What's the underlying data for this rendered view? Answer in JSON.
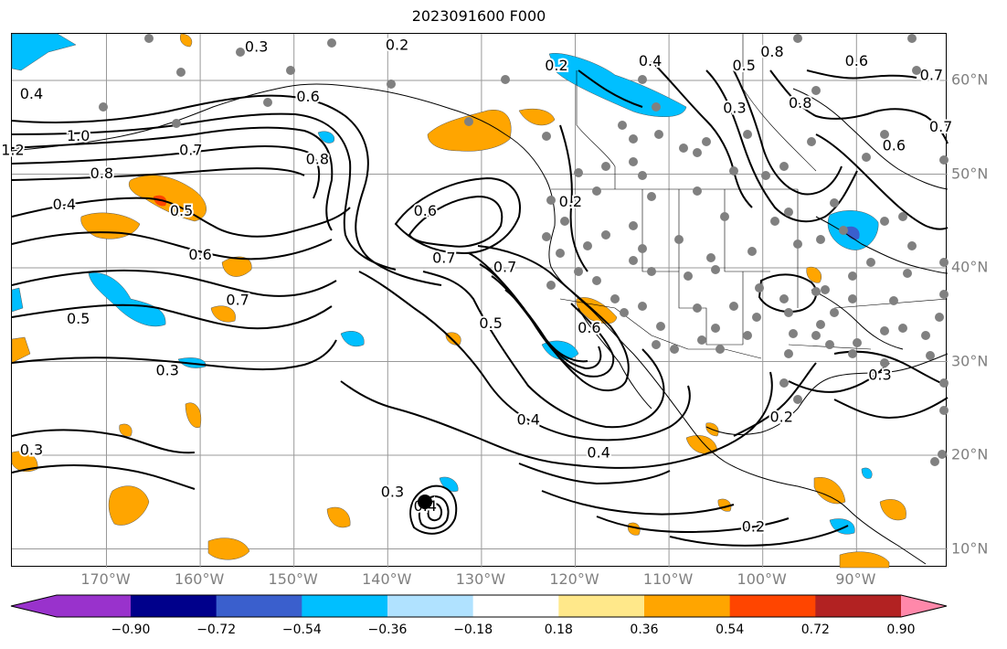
{
  "title": "2023091600 F000",
  "lon_labels": [
    {
      "text": "170°W",
      "lon": -170
    },
    {
      "text": "160°W",
      "lon": -160
    },
    {
      "text": "150°W",
      "lon": -150
    },
    {
      "text": "140°W",
      "lon": -140
    },
    {
      "text": "130°W",
      "lon": -130
    },
    {
      "text": "120°W",
      "lon": -120
    },
    {
      "text": "110°W",
      "lon": -110
    },
    {
      "text": "100°W",
      "lon": -100
    },
    {
      "text": "90°W",
      "lon": -90
    }
  ],
  "lat_labels": [
    {
      "text": "60°N",
      "lat": 60
    },
    {
      "text": "50°N",
      "lat": 50
    },
    {
      "text": "40°N",
      "lat": 40
    },
    {
      "text": "30°N",
      "lat": 30
    },
    {
      "text": "20°N",
      "lat": 20
    },
    {
      "text": "10°N",
      "lat": 10
    }
  ],
  "colorbar": {
    "ticks": [
      "−0.90",
      "−0.72",
      "−0.54",
      "−0.36",
      "−0.18",
      "0.18",
      "0.36",
      "0.54",
      "0.72",
      "0.90"
    ],
    "colors": [
      "#9932cc",
      "#00008b",
      "#3a5fcd",
      "#00bfff",
      "#b0e2ff",
      "#ffffff",
      "#ffe88a",
      "#ffa500",
      "#ff4500",
      "#b22222",
      "#ff88aa"
    ]
  },
  "contour_labels": [
    {
      "text": "0.3",
      "lon": -154,
      "lat": 63.5
    },
    {
      "text": "0.2",
      "lon": -139,
      "lat": 63.7
    },
    {
      "text": "0.4",
      "lon": -178,
      "lat": 58.5
    },
    {
      "text": "0.6",
      "lon": -148.5,
      "lat": 58.2
    },
    {
      "text": "0.7",
      "lon": -161,
      "lat": 52.5
    },
    {
      "text": "0.8",
      "lon": -147.5,
      "lat": 51.5
    },
    {
      "text": "1.2",
      "lon": -180,
      "lat": 52.5
    },
    {
      "text": "1.0",
      "lon": -173,
      "lat": 54
    },
    {
      "text": "0.8",
      "lon": -170.5,
      "lat": 50
    },
    {
      "text": "0.4",
      "lon": -174.5,
      "lat": 46.7
    },
    {
      "text": "0.5",
      "lon": -162,
      "lat": 46
    },
    {
      "text": "0.6",
      "lon": -160,
      "lat": 41.3
    },
    {
      "text": "0.7",
      "lon": -156,
      "lat": 36.5
    },
    {
      "text": "0.5",
      "lon": -173,
      "lat": 34.5
    },
    {
      "text": "0.3",
      "lon": -163.5,
      "lat": 29
    },
    {
      "text": "0.3",
      "lon": -178,
      "lat": 20.5
    },
    {
      "text": "0.6",
      "lon": -136,
      "lat": 46
    },
    {
      "text": "0.7",
      "lon": -134,
      "lat": 41
    },
    {
      "text": "0.7",
      "lon": -127.5,
      "lat": 40
    },
    {
      "text": "0.5",
      "lon": -129,
      "lat": 34
    },
    {
      "text": "0.6",
      "lon": -118.5,
      "lat": 33.5
    },
    {
      "text": "0.4",
      "lon": -125,
      "lat": 23.7
    },
    {
      "text": "0.4",
      "lon": -117.5,
      "lat": 20.2
    },
    {
      "text": "0.2",
      "lon": -120.5,
      "lat": 47
    },
    {
      "text": "0.2",
      "lon": -122,
      "lat": 61.5
    },
    {
      "text": "0.4",
      "lon": -112,
      "lat": 62
    },
    {
      "text": "0.5",
      "lon": -102,
      "lat": 61.5
    },
    {
      "text": "0.8",
      "lon": -99,
      "lat": 63
    },
    {
      "text": "0.3",
      "lon": -103,
      "lat": 57
    },
    {
      "text": "0.8",
      "lon": -96,
      "lat": 57.5
    },
    {
      "text": "0.6",
      "lon": -90,
      "lat": 62
    },
    {
      "text": "0.7",
      "lon": -82,
      "lat": 60.5
    },
    {
      "text": "0.7",
      "lon": -81,
      "lat": 55
    },
    {
      "text": "0.6",
      "lon": -86,
      "lat": 53
    },
    {
      "text": "0.3",
      "lon": -87.5,
      "lat": 28.5
    },
    {
      "text": "0.2",
      "lon": -98,
      "lat": 24
    },
    {
      "text": "0.2",
      "lon": -101,
      "lat": 12.3
    },
    {
      "text": "0.3",
      "lon": -139.5,
      "lat": 16
    },
    {
      "text": "0.4",
      "lon": -136,
      "lat": 14.5
    }
  ]
}
